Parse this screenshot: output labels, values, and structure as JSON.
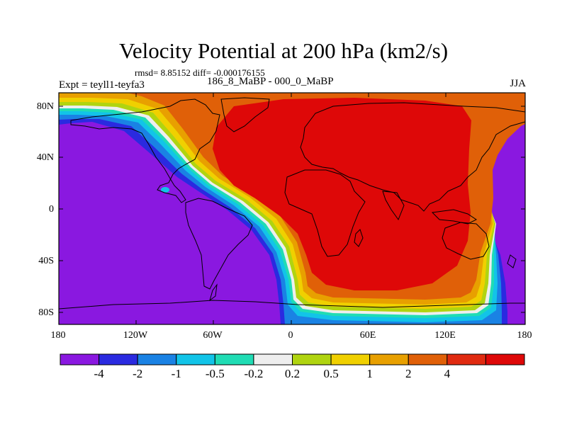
{
  "title": "Velocity Potential at 200 hPa (km2/s)",
  "stats": "rmsd= 8.85152 diff= -0.000176155",
  "period": "186_8_MaBP - 000_0_MaBP",
  "expt": "Expt = teyll1-teyfa3",
  "season": "JJA",
  "axes": {
    "y_ticks": [
      "80N",
      "40N",
      "0",
      "40S",
      "80S"
    ],
    "x_ticks": [
      "180",
      "120W",
      "60W",
      "0",
      "60E",
      "120E",
      "180"
    ]
  },
  "colorbar": {
    "colors": [
      "#8a18e0",
      "#2a2ae0",
      "#1a82e4",
      "#12c4e8",
      "#20dcb4",
      "#eeeeee",
      "#b0d410",
      "#f0d000",
      "#e8a000",
      "#e06008",
      "#e02a10",
      "#de0808"
    ],
    "labels": [
      "-4",
      "-2",
      "-1",
      "-0.5",
      "-0.2",
      "0.2",
      "0.5",
      "1",
      "2",
      "4"
    ]
  },
  "colors": {
    "ocean_low": "#8a18e0",
    "continent_outline": "#000000",
    "high": "#de0808"
  }
}
